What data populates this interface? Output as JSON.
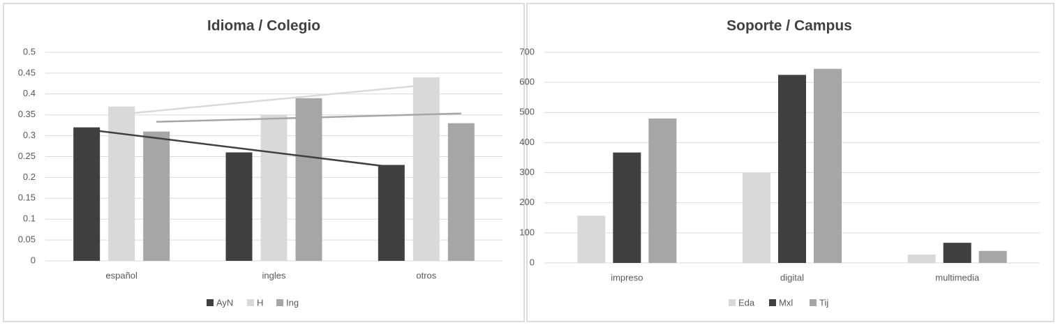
{
  "chart_data": [
    {
      "type": "bar",
      "title": "Idioma / Colegio",
      "categories": [
        "español",
        "ingles",
        "otros"
      ],
      "series": [
        {
          "name": "AyN",
          "color": "#404040",
          "values": [
            0.32,
            0.26,
            0.23
          ]
        },
        {
          "name": "H",
          "color": "#d9d9d9",
          "values": [
            0.37,
            0.35,
            0.44
          ]
        },
        {
          "name": "Ing",
          "color": "#a6a6a6",
          "values": [
            0.31,
            0.39,
            0.33
          ]
        }
      ],
      "ylim": [
        0,
        0.5
      ],
      "yticks": [
        0,
        0.05,
        0.1,
        0.15,
        0.2,
        0.25,
        0.3,
        0.35,
        0.4,
        0.45,
        0.5
      ],
      "grid": true,
      "trendline": true,
      "legend": "bottom"
    },
    {
      "type": "bar",
      "title": "Soporte / Campus",
      "categories": [
        "impreso",
        "digital",
        "multimedia"
      ],
      "series": [
        {
          "name": "Eda",
          "color": "#d9d9d9",
          "values": [
            157,
            300,
            28
          ]
        },
        {
          "name": "Mxl",
          "color": "#404040",
          "values": [
            367,
            625,
            67
          ]
        },
        {
          "name": "Tij",
          "color": "#a6a6a6",
          "values": [
            480,
            645,
            40
          ]
        }
      ],
      "ylim": [
        0,
        700
      ],
      "yticks": [
        0,
        100,
        200,
        300,
        400,
        500,
        600,
        700
      ],
      "grid": true,
      "trendline": false,
      "legend": "bottom"
    }
  ]
}
